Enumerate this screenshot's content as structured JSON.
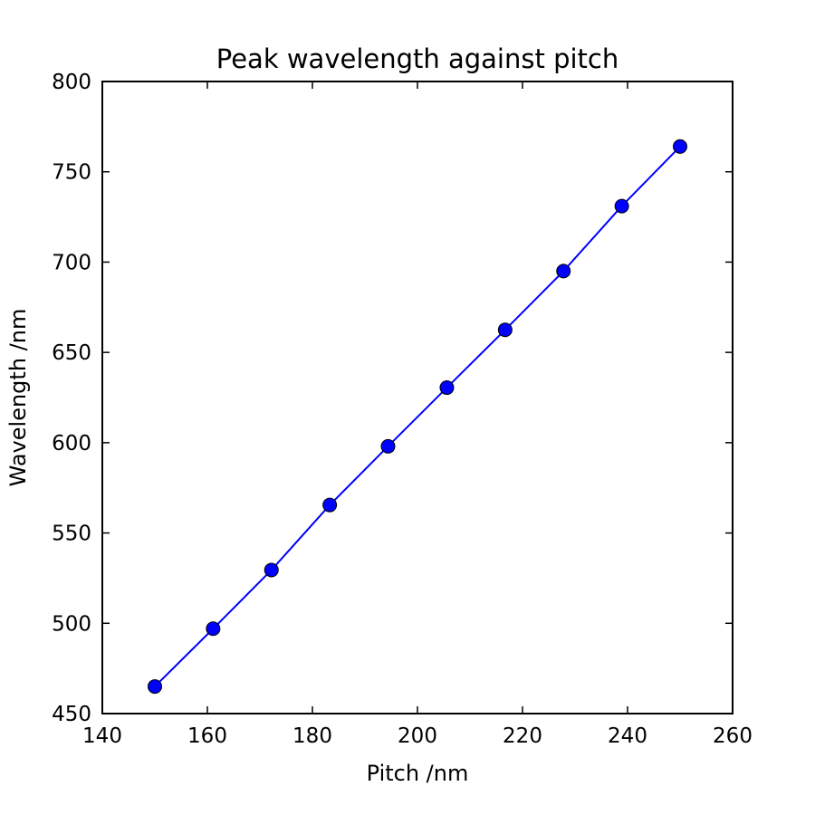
{
  "chart_data": {
    "type": "line",
    "title": "Peak wavelength against pitch",
    "xlabel": "Pitch /nm",
    "ylabel": "Wavelength /nm",
    "xlim": [
      140,
      260
    ],
    "ylim": [
      450,
      800
    ],
    "xticks": [
      140,
      160,
      180,
      200,
      220,
      240,
      260
    ],
    "yticks": [
      450,
      500,
      550,
      600,
      650,
      700,
      750,
      800
    ],
    "grid": false,
    "legend": "none",
    "series": [
      {
        "x": [
          150,
          161.1,
          172.2,
          183.3,
          194.4,
          205.6,
          216.7,
          227.8,
          238.9,
          250
        ],
        "y": [
          465,
          497,
          529.5,
          565.5,
          598,
          630.5,
          662.5,
          695,
          731,
          764
        ],
        "color": "#0000ff",
        "marker": "circle"
      }
    ]
  }
}
